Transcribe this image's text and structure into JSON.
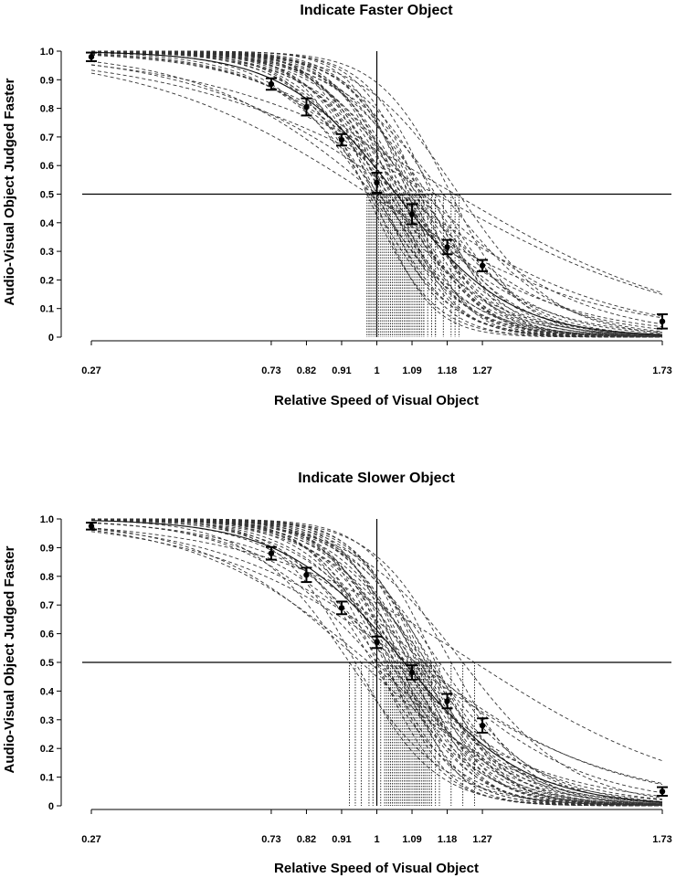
{
  "chart_data": [
    {
      "type": "line",
      "title": "Indicate Faster Object",
      "xlabel": "Relative Speed of Visual Object",
      "ylabel": "Audio-Visual Object Judged Faster",
      "x_ticks": [
        0.27,
        0.73,
        0.82,
        0.91,
        1,
        1.09,
        1.18,
        1.27,
        1.73
      ],
      "x_tick_labels": [
        "0.27",
        "0.73",
        "0.82",
        "0.91",
        "1",
        "1.09",
        "1.18",
        "1.27",
        "1.73"
      ],
      "y_ticks": [
        0,
        0.1,
        0.2,
        0.3,
        0.4,
        0.5,
        0.6,
        0.7,
        0.8,
        0.9,
        1.0
      ],
      "y_tick_labels": [
        "0",
        "0.1",
        "0.2",
        "0.3",
        "0.4",
        "0.5",
        "0.6",
        "0.7",
        "0.8",
        "0.9",
        "1.0"
      ],
      "xlim": [
        0.27,
        1.73
      ],
      "ylim": [
        0,
        1
      ],
      "reference_lines": {
        "x": 1,
        "y": 0.5
      },
      "mean_points": [
        {
          "x": 0.27,
          "y": 0.98,
          "err": 0.015
        },
        {
          "x": 0.73,
          "y": 0.885,
          "err": 0.02
        },
        {
          "x": 0.82,
          "y": 0.805,
          "err": 0.03
        },
        {
          "x": 0.91,
          "y": 0.69,
          "err": 0.02
        },
        {
          "x": 1,
          "y": 0.54,
          "err": 0.035
        },
        {
          "x": 1.09,
          "y": 0.43,
          "err": 0.035
        },
        {
          "x": 1.18,
          "y": 0.315,
          "err": 0.025
        },
        {
          "x": 1.27,
          "y": 0.25,
          "err": 0.02
        },
        {
          "x": 1.73,
          "y": 0.055,
          "err": 0.025
        }
      ],
      "mean_fit": {
        "pse": 1.05,
        "slope": 7.0
      },
      "individual_fits": [
        {
          "pse": 0.975,
          "slope": 12
        },
        {
          "pse": 0.98,
          "slope": 10
        },
        {
          "pse": 0.985,
          "slope": 8
        },
        {
          "pse": 0.99,
          "slope": 14
        },
        {
          "pse": 0.995,
          "slope": 9
        },
        {
          "pse": 1.0,
          "slope": 11
        },
        {
          "pse": 1.005,
          "slope": 7
        },
        {
          "pse": 1.01,
          "slope": 13
        },
        {
          "pse": 1.015,
          "slope": 9
        },
        {
          "pse": 1.02,
          "slope": 10
        },
        {
          "pse": 1.025,
          "slope": 12
        },
        {
          "pse": 1.03,
          "slope": 8
        },
        {
          "pse": 1.035,
          "slope": 11
        },
        {
          "pse": 1.04,
          "slope": 9
        },
        {
          "pse": 1.045,
          "slope": 13
        },
        {
          "pse": 1.05,
          "slope": 7
        },
        {
          "pse": 1.055,
          "slope": 10
        },
        {
          "pse": 1.06,
          "slope": 12
        },
        {
          "pse": 1.065,
          "slope": 8
        },
        {
          "pse": 1.07,
          "slope": 11
        },
        {
          "pse": 1.075,
          "slope": 9
        },
        {
          "pse": 1.08,
          "slope": 14
        },
        {
          "pse": 1.085,
          "slope": 10
        },
        {
          "pse": 1.09,
          "slope": 12
        },
        {
          "pse": 1.095,
          "slope": 8
        },
        {
          "pse": 1.1,
          "slope": 11
        },
        {
          "pse": 1.105,
          "slope": 7
        },
        {
          "pse": 1.11,
          "slope": 13
        },
        {
          "pse": 1.115,
          "slope": 9
        },
        {
          "pse": 1.12,
          "slope": 10
        },
        {
          "pse": 1.13,
          "slope": 8
        },
        {
          "pse": 1.14,
          "slope": 12
        },
        {
          "pse": 1.15,
          "slope": 9
        },
        {
          "pse": 1.17,
          "slope": 7
        },
        {
          "pse": 1.19,
          "slope": 11
        },
        {
          "pse": 1.21,
          "slope": 8
        },
        {
          "pse": 1.08,
          "slope": 5.5
        },
        {
          "pse": 1.0,
          "slope": 4.5
        },
        {
          "pse": 1.06,
          "slope": 3.8
        },
        {
          "pse": 1.2,
          "slope": 3.2
        },
        {
          "pse": 1.15,
          "slope": 3.0
        },
        {
          "pse": 0.98,
          "slope": 3.5
        },
        {
          "pse": 1.05,
          "slope": 6.0
        },
        {
          "pse": 1.12,
          "slope": 5.0
        }
      ]
    },
    {
      "type": "line",
      "title": "Indicate Slower Object",
      "xlabel": "Relative Speed of Visual Object",
      "ylabel": "Audio-Visual Object Judged Faster",
      "x_ticks": [
        0.27,
        0.73,
        0.82,
        0.91,
        1,
        1.09,
        1.18,
        1.27,
        1.73
      ],
      "x_tick_labels": [
        "0.27",
        "0.73",
        "0.82",
        "0.91",
        "1",
        "1.09",
        "1.18",
        "1.27",
        "1.73"
      ],
      "y_ticks": [
        0,
        0.1,
        0.2,
        0.3,
        0.4,
        0.5,
        0.6,
        0.7,
        0.8,
        0.9,
        1.0
      ],
      "y_tick_labels": [
        "0",
        "0.1",
        "0.2",
        "0.3",
        "0.4",
        "0.5",
        "0.6",
        "0.7",
        "0.8",
        "0.9",
        "1.0"
      ],
      "xlim": [
        0.27,
        1.73
      ],
      "ylim": [
        0,
        1
      ],
      "reference_lines": {
        "x": 1,
        "y": 0.5
      },
      "mean_points": [
        {
          "x": 0.27,
          "y": 0.975,
          "err": 0.012
        },
        {
          "x": 0.73,
          "y": 0.88,
          "err": 0.022
        },
        {
          "x": 0.82,
          "y": 0.805,
          "err": 0.025
        },
        {
          "x": 0.91,
          "y": 0.69,
          "err": 0.022
        },
        {
          "x": 1,
          "y": 0.57,
          "err": 0.02
        },
        {
          "x": 1.09,
          "y": 0.465,
          "err": 0.025
        },
        {
          "x": 1.18,
          "y": 0.365,
          "err": 0.025
        },
        {
          "x": 1.27,
          "y": 0.28,
          "err": 0.025
        },
        {
          "x": 1.73,
          "y": 0.05,
          "err": 0.015
        }
      ],
      "mean_fit": {
        "pse": 1.07,
        "slope": 6.5
      },
      "individual_fits": [
        {
          "pse": 0.93,
          "slope": 8
        },
        {
          "pse": 0.945,
          "slope": 10
        },
        {
          "pse": 0.99,
          "slope": 9
        },
        {
          "pse": 1.0,
          "slope": 12
        },
        {
          "pse": 1.01,
          "slope": 8
        },
        {
          "pse": 1.02,
          "slope": 11
        },
        {
          "pse": 1.025,
          "slope": 13
        },
        {
          "pse": 1.03,
          "slope": 7
        },
        {
          "pse": 1.035,
          "slope": 10
        },
        {
          "pse": 1.04,
          "slope": 9
        },
        {
          "pse": 1.045,
          "slope": 12
        },
        {
          "pse": 1.05,
          "slope": 8
        },
        {
          "pse": 1.055,
          "slope": 11
        },
        {
          "pse": 1.06,
          "slope": 14
        },
        {
          "pse": 1.065,
          "slope": 9
        },
        {
          "pse": 1.07,
          "slope": 10
        },
        {
          "pse": 1.075,
          "slope": 7
        },
        {
          "pse": 1.08,
          "slope": 12
        },
        {
          "pse": 1.085,
          "slope": 9
        },
        {
          "pse": 1.09,
          "slope": 11
        },
        {
          "pse": 1.095,
          "slope": 8
        },
        {
          "pse": 1.1,
          "slope": 13
        },
        {
          "pse": 1.105,
          "slope": 10
        },
        {
          "pse": 1.11,
          "slope": 9
        },
        {
          "pse": 1.115,
          "slope": 12
        },
        {
          "pse": 1.12,
          "slope": 8
        },
        {
          "pse": 1.125,
          "slope": 11
        },
        {
          "pse": 1.13,
          "slope": 7
        },
        {
          "pse": 1.135,
          "slope": 10
        },
        {
          "pse": 1.14,
          "slope": 9
        },
        {
          "pse": 1.15,
          "slope": 12
        },
        {
          "pse": 1.16,
          "slope": 8
        },
        {
          "pse": 1.19,
          "slope": 10
        },
        {
          "pse": 1.22,
          "slope": 7
        },
        {
          "pse": 1.05,
          "slope": 5.5
        },
        {
          "pse": 0.98,
          "slope": 4.5
        },
        {
          "pse": 1.1,
          "slope": 4.0
        },
        {
          "pse": 1.25,
          "slope": 3.5
        },
        {
          "pse": 1.12,
          "slope": 5.0
        },
        {
          "pse": 1.0,
          "slope": 6.0
        },
        {
          "pse": 1.08,
          "slope": 3.8
        },
        {
          "pse": 0.96,
          "slope": 5.0
        }
      ]
    }
  ]
}
